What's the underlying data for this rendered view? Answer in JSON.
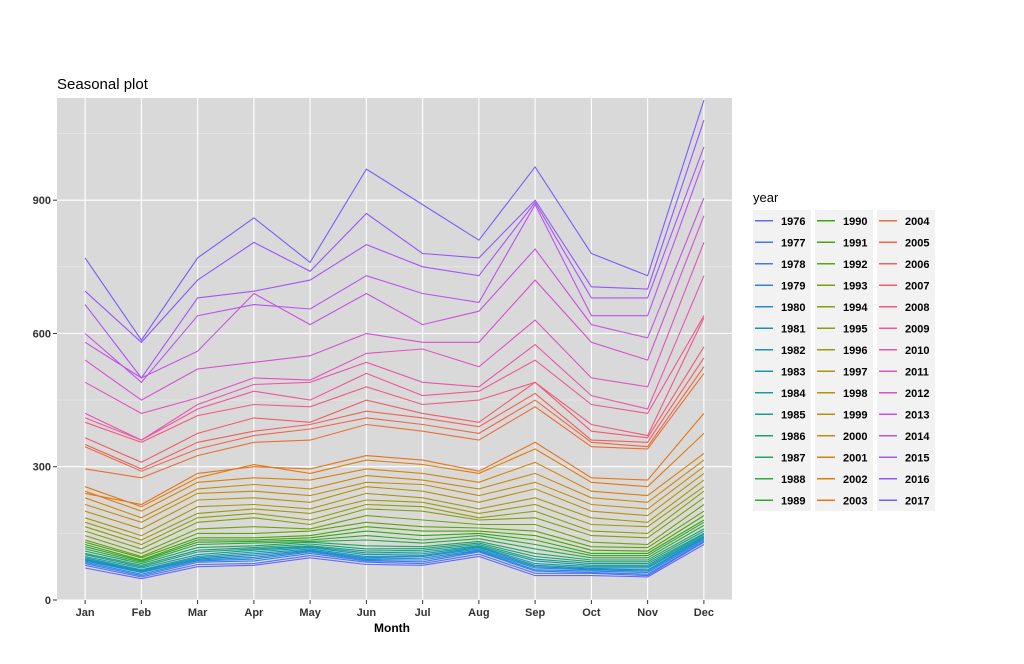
{
  "chart_data": {
    "type": "line",
    "title": "Seasonal plot",
    "xlabel": "Month",
    "ylabel": "",
    "categories": [
      "Jan",
      "Feb",
      "Mar",
      "Apr",
      "May",
      "Jun",
      "Jul",
      "Aug",
      "Sep",
      "Oct",
      "Nov",
      "Dec"
    ],
    "yticks": [
      0,
      300,
      600,
      900
    ],
    "ylim": [
      0,
      1130
    ],
    "grid": true,
    "legend": {
      "title": "year",
      "placement": "right"
    },
    "series": [
      {
        "name": "1976",
        "color": "#6666ff",
        "values": [
          72,
          48,
          75,
          78,
          95,
          80,
          78,
          98,
          55,
          55,
          52,
          125
        ]
      },
      {
        "name": "1977",
        "color": "#4a74f5",
        "values": [
          78,
          52,
          80,
          82,
          100,
          85,
          82,
          103,
          60,
          60,
          55,
          130
        ]
      },
      {
        "name": "1978",
        "color": "#3c7cec",
        "values": [
          82,
          55,
          85,
          88,
          105,
          88,
          86,
          108,
          65,
          62,
          58,
          132
        ]
      },
      {
        "name": "1979",
        "color": "#2f84e2",
        "values": [
          85,
          58,
          88,
          92,
          108,
          90,
          90,
          110,
          68,
          65,
          62,
          135
        ]
      },
      {
        "name": "1980",
        "color": "#1e8bd6",
        "values": [
          88,
          62,
          90,
          96,
          110,
          92,
          94,
          112,
          72,
          68,
          65,
          138
        ]
      },
      {
        "name": "1981",
        "color": "#1290c9",
        "values": [
          90,
          64,
          92,
          100,
          112,
          95,
          98,
          115,
          75,
          70,
          68,
          140
        ]
      },
      {
        "name": "1982",
        "color": "#1295bc",
        "values": [
          92,
          66,
          95,
          104,
          115,
          98,
          100,
          118,
          78,
          72,
          72,
          142
        ]
      },
      {
        "name": "1983",
        "color": "#1899ae",
        "values": [
          95,
          68,
          98,
          108,
          118,
          102,
          104,
          120,
          82,
          75,
          75,
          145
        ]
      },
      {
        "name": "1984",
        "color": "#1a9c9e",
        "values": [
          98,
          72,
          102,
          112,
          120,
          106,
          108,
          122,
          88,
          78,
          78,
          148
        ]
      },
      {
        "name": "1985",
        "color": "#169f8c",
        "values": [
          102,
          75,
          108,
          115,
          122,
          110,
          112,
          125,
          92,
          82,
          82,
          150
        ]
      },
      {
        "name": "1986",
        "color": "#15a277",
        "values": [
          105,
          78,
          112,
          118,
          126,
          115,
          116,
          128,
          98,
          86,
          86,
          155
        ]
      },
      {
        "name": "1987",
        "color": "#1fa55f",
        "values": [
          110,
          82,
          118,
          122,
          130,
          122,
          120,
          132,
          105,
          90,
          90,
          160
        ]
      },
      {
        "name": "1988",
        "color": "#2ba845",
        "values": [
          115,
          85,
          125,
          128,
          132,
          135,
          128,
          138,
          115,
          95,
          95,
          168
        ]
      },
      {
        "name": "1989",
        "color": "#31a82a",
        "values": [
          120,
          88,
          130,
          132,
          135,
          145,
          135,
          145,
          125,
          100,
          100,
          175
        ]
      },
      {
        "name": "1990",
        "color": "#34a812",
        "values": [
          125,
          90,
          135,
          135,
          140,
          155,
          145,
          150,
          135,
          105,
          105,
          180
        ]
      },
      {
        "name": "1991",
        "color": "#4aa60a",
        "values": [
          130,
          95,
          140,
          140,
          145,
          165,
          155,
          155,
          145,
          112,
          110,
          190
        ]
      },
      {
        "name": "1992",
        "color": "#5ea40a",
        "values": [
          135,
          98,
          150,
          150,
          155,
          175,
          165,
          162,
          155,
          120,
          118,
          200
        ]
      },
      {
        "name": "1993",
        "color": "#71a20a",
        "values": [
          145,
          105,
          160,
          165,
          160,
          190,
          180,
          170,
          170,
          130,
          125,
          215
        ]
      },
      {
        "name": "1994",
        "color": "#82a00a",
        "values": [
          155,
          115,
          175,
          185,
          170,
          205,
          200,
          180,
          185,
          145,
          140,
          230
        ]
      },
      {
        "name": "1995",
        "color": "#919d0a",
        "values": [
          165,
          125,
          185,
          195,
          180,
          215,
          210,
          185,
          200,
          155,
          150,
          245
        ]
      },
      {
        "name": "1996",
        "color": "#9e9a0a",
        "values": [
          175,
          135,
          195,
          205,
          195,
          225,
          220,
          195,
          215,
          170,
          165,
          255
        ]
      },
      {
        "name": "1997",
        "color": "#aa960a",
        "values": [
          185,
          145,
          210,
          215,
          205,
          240,
          230,
          205,
          230,
          185,
          175,
          270
        ]
      },
      {
        "name": "1998",
        "color": "#b6920a",
        "values": [
          200,
          160,
          225,
          230,
          220,
          255,
          245,
          220,
          250,
          200,
          190,
          285
        ]
      },
      {
        "name": "1999",
        "color": "#c28d0a",
        "values": [
          215,
          175,
          240,
          245,
          235,
          265,
          260,
          235,
          265,
          215,
          205,
          300
        ]
      },
      {
        "name": "2000",
        "color": "#cc880a",
        "values": [
          230,
          185,
          250,
          260,
          250,
          280,
          270,
          250,
          285,
          230,
          220,
          315
        ]
      },
      {
        "name": "2001",
        "color": "#d7820a",
        "values": [
          245,
          200,
          265,
          275,
          270,
          295,
          285,
          265,
          310,
          245,
          235,
          330
        ]
      },
      {
        "name": "2002",
        "color": "#e07b0a",
        "values": [
          255,
          210,
          275,
          305,
          285,
          315,
          305,
          285,
          340,
          265,
          255,
          375
        ]
      },
      {
        "name": "2003",
        "color": "#e6741a",
        "values": [
          240,
          215,
          285,
          300,
          295,
          325,
          315,
          290,
          355,
          275,
          270,
          420
        ]
      },
      {
        "name": "2004",
        "color": "#ea6e35",
        "values": [
          295,
          275,
          325,
          355,
          360,
          395,
          380,
          360,
          435,
          345,
          340,
          510
        ]
      },
      {
        "name": "2005",
        "color": "#ec6848",
        "values": [
          345,
          290,
          340,
          370,
          385,
          410,
          395,
          375,
          450,
          355,
          345,
          525
        ]
      },
      {
        "name": "2006",
        "color": "#ed6258",
        "values": [
          350,
          295,
          355,
          380,
          395,
          425,
          410,
          390,
          465,
          360,
          355,
          545
        ]
      },
      {
        "name": "2007",
        "color": "#ee5c6b",
        "values": [
          365,
          310,
          375,
          410,
          400,
          450,
          420,
          400,
          490,
          380,
          365,
          570
        ]
      },
      {
        "name": "2008",
        "color": "#ee5a82",
        "values": [
          400,
          355,
          415,
          440,
          435,
          480,
          440,
          450,
          490,
          395,
          370,
          635
        ]
      },
      {
        "name": "2009",
        "color": "#ec5898",
        "values": [
          410,
          360,
          430,
          470,
          450,
          510,
          460,
          470,
          540,
          440,
          420,
          640
        ]
      },
      {
        "name": "2010",
        "color": "#e856ac",
        "values": [
          420,
          360,
          440,
          485,
          490,
          535,
          490,
          480,
          575,
          460,
          430,
          730
        ]
      },
      {
        "name": "2011",
        "color": "#e052c2",
        "values": [
          490,
          420,
          455,
          500,
          495,
          555,
          565,
          525,
          630,
          500,
          480,
          805
        ]
      },
      {
        "name": "2012",
        "color": "#d550d3",
        "values": [
          540,
          450,
          520,
          535,
          550,
          600,
          580,
          580,
          720,
          580,
          540,
          865
        ]
      },
      {
        "name": "2013",
        "color": "#c850e2",
        "values": [
          580,
          500,
          560,
          690,
          620,
          690,
          620,
          650,
          790,
          620,
          590,
          905
        ]
      },
      {
        "name": "2014",
        "color": "#b952ee",
        "values": [
          600,
          490,
          640,
          665,
          655,
          730,
          690,
          670,
          890,
          640,
          640,
          990
        ]
      },
      {
        "name": "2015",
        "color": "#a656f5",
        "values": [
          665,
          500,
          680,
          695,
          720,
          800,
          750,
          730,
          895,
          680,
          680,
          1020
        ]
      },
      {
        "name": "2016",
        "color": "#9059f9",
        "values": [
          695,
          580,
          720,
          805,
          740,
          870,
          780,
          770,
          900,
          705,
          700,
          1080
        ]
      },
      {
        "name": "2017",
        "color": "#7b5df9",
        "values": [
          770,
          585,
          770,
          860,
          760,
          970,
          890,
          810,
          975,
          780,
          730,
          1125
        ]
      }
    ]
  }
}
